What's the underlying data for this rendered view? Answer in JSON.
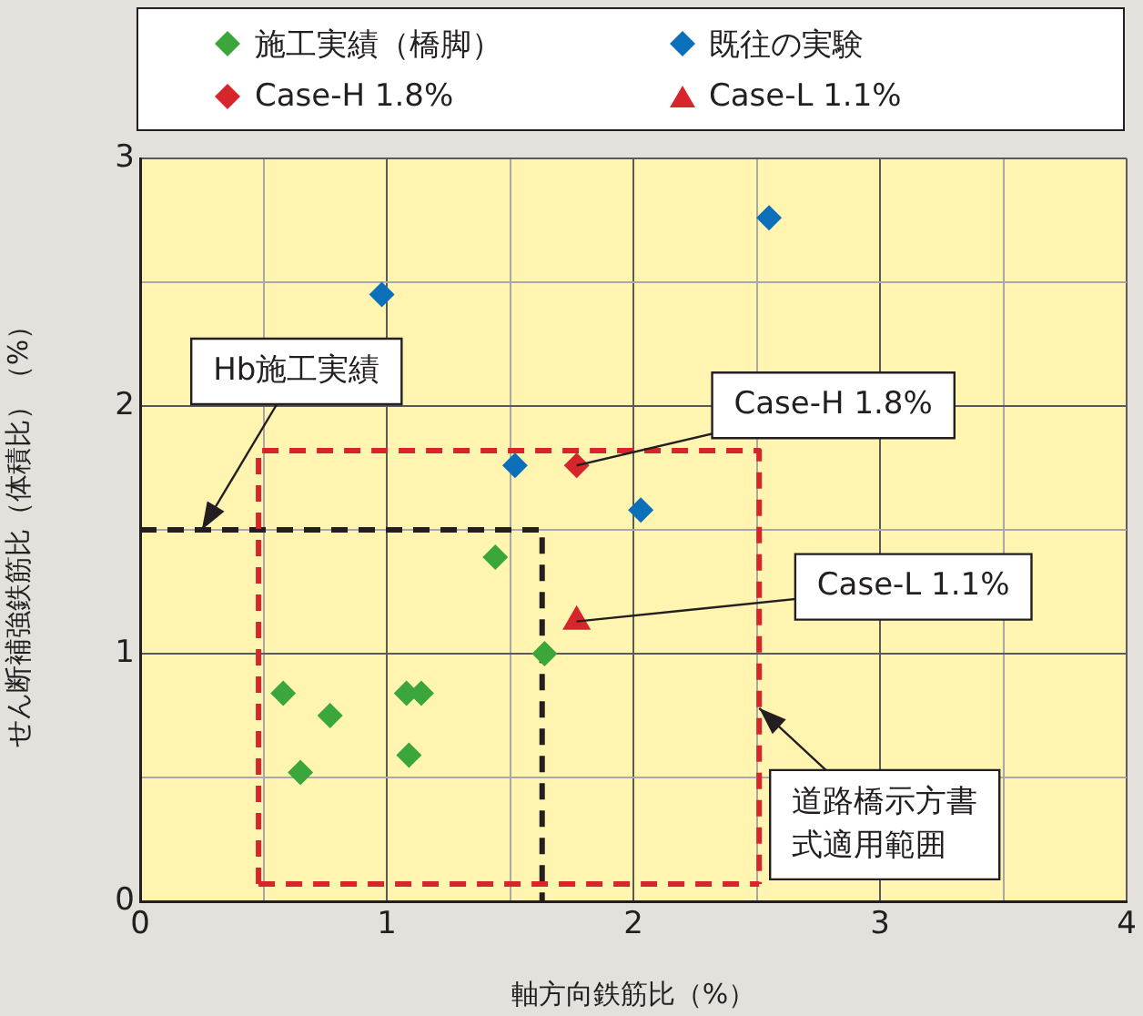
{
  "chart_data": {
    "type": "scatter",
    "xlabel": "軸方向鉄筋比（%）",
    "ylabel": "せん断補強鉄筋比（体積比）（%）",
    "xlim": [
      0,
      4
    ],
    "ylim": [
      0,
      3
    ],
    "xticks": [
      0,
      {
        "value": 0.5,
        "label": null
      },
      1,
      {
        "value": 1.5,
        "label": null
      },
      2,
      {
        "value": 2.5,
        "label": null
      },
      3,
      {
        "value": 3.5,
        "label": null
      },
      4
    ],
    "yticks": [
      0,
      {
        "value": 0.5,
        "label": null
      },
      1,
      {
        "value": 1.5,
        "label": null
      },
      2,
      {
        "value": 2.5,
        "label": null
      },
      3
    ],
    "grid": true,
    "legend": "top",
    "series": [
      {
        "name": "施工実績（橋脚）",
        "type": "scatter",
        "marker": "diamond",
        "color": "#3aa63b",
        "x": [
          0.58,
          0.77,
          0.65,
          1.08,
          1.14,
          1.09,
          1.44,
          1.64
        ],
        "values": [
          0.84,
          0.75,
          0.52,
          0.84,
          0.84,
          0.59,
          1.39,
          1.0
        ]
      },
      {
        "name": "既往の実験",
        "type": "scatter",
        "marker": "diamond",
        "color": "#0b6fba",
        "x": [
          0.98,
          1.52,
          2.03,
          2.55
        ],
        "values": [
          2.45,
          1.76,
          1.58,
          2.76
        ]
      },
      {
        "name": "Case-H 1.8%",
        "type": "scatter",
        "marker": "diamond",
        "color": "#d7262b",
        "x": [
          1.77
        ],
        "values": [
          1.76
        ]
      },
      {
        "name": "Case-L 1.1%",
        "type": "scatter",
        "marker": "triangle",
        "color": "#d7262b",
        "x": [
          1.77
        ],
        "values": [
          1.13
        ]
      },
      {
        "type": "line",
        "marker": "none",
        "line_style": "dashed",
        "color": "#d7262b",
        "x": [
          0.48,
          0.48,
          2.51,
          2.51
        ],
        "values": [
          0.07,
          1.82,
          1.82,
          0.07
        ]
      },
      {
        "type": "line",
        "marker": "none",
        "line_style": "dashed",
        "color": "#d7262b",
        "x": [
          0.48,
          2.51
        ],
        "values": [
          0.07,
          0.07
        ]
      },
      {
        "type": "line",
        "marker": "none",
        "line_style": "dashed",
        "color": "#231f20",
        "x": [
          0,
          1.63,
          1.63
        ],
        "values": [
          1.5,
          1.5,
          0
        ]
      }
    ],
    "annotations": [
      {
        "text": "Hb施工実績",
        "x": 0.25,
        "y": 1.5
      },
      {
        "text": "Case-H 1.8%",
        "x": 1.77,
        "y": 1.76
      },
      {
        "text": "Case-L 1.1%",
        "x": 1.77,
        "y": 1.13
      },
      {
        "text": "道路橋示方書式適用範囲",
        "x": 2.51,
        "y": 0.78
      }
    ]
  }
}
